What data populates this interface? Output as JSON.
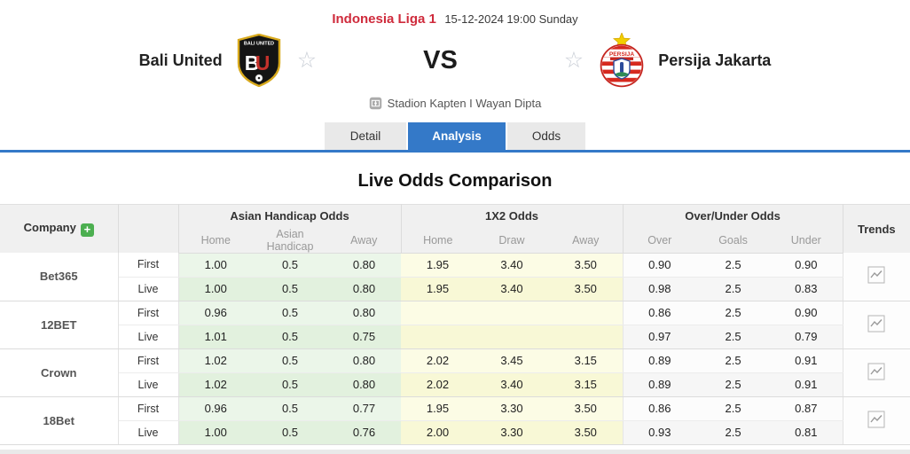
{
  "match_header": {
    "league": "Indonesia Liga 1",
    "datetime": "15-12-2024 19:00 Sunday",
    "home_team": "Bali United",
    "away_team": "Persija Jakarta",
    "vs_label": "VS",
    "venue": "Stadion Kapten I Wayan Dipta"
  },
  "tabs": [
    {
      "label": "Detail",
      "active": false
    },
    {
      "label": "Analysis",
      "active": true
    },
    {
      "label": "Odds",
      "active": false
    }
  ],
  "section_title": "Live Odds Comparison",
  "odds_table": {
    "company_header": "Company",
    "add_button_label": "+",
    "trends_header": "Trends",
    "row_labels": [
      "First",
      "Live"
    ],
    "groups": [
      {
        "label": "Asian Handicap Odds",
        "columns": [
          "Home",
          "Asian Handicap",
          "Away"
        ]
      },
      {
        "label": "1X2 Odds",
        "columns": [
          "Home",
          "Draw",
          "Away"
        ]
      },
      {
        "label": "Over/Under Odds",
        "columns": [
          "Over",
          "Goals",
          "Under"
        ]
      }
    ],
    "companies": [
      {
        "name": "Bet365",
        "first": {
          "ah": [
            "1.00",
            "0.5",
            "0.80"
          ],
          "x12": [
            "1.95",
            "3.40",
            "3.50"
          ],
          "ou": [
            "0.90",
            "2.5",
            "0.90"
          ]
        },
        "live": {
          "ah": [
            "1.00",
            "0.5",
            "0.80"
          ],
          "x12": [
            "1.95",
            "3.40",
            "3.50"
          ],
          "ou": [
            "0.98",
            "2.5",
            "0.83"
          ]
        }
      },
      {
        "name": "12BET",
        "first": {
          "ah": [
            "0.96",
            "0.5",
            "0.80"
          ],
          "x12": [
            "",
            "",
            ""
          ],
          "ou": [
            "0.86",
            "2.5",
            "0.90"
          ]
        },
        "live": {
          "ah": [
            "1.01",
            "0.5",
            "0.75"
          ],
          "x12": [
            "",
            "",
            ""
          ],
          "ou": [
            "0.97",
            "2.5",
            "0.79"
          ]
        }
      },
      {
        "name": "Crown",
        "first": {
          "ah": [
            "1.02",
            "0.5",
            "0.80"
          ],
          "x12": [
            "2.02",
            "3.45",
            "3.15"
          ],
          "ou": [
            "0.89",
            "2.5",
            "0.91"
          ]
        },
        "live": {
          "ah": [
            "1.02",
            "0.5",
            "0.80"
          ],
          "x12": [
            "2.02",
            "3.40",
            "3.15"
          ],
          "ou": [
            "0.89",
            "2.5",
            "0.91"
          ]
        }
      },
      {
        "name": "18Bet",
        "first": {
          "ah": [
            "0.96",
            "0.5",
            "0.77"
          ],
          "x12": [
            "1.95",
            "3.30",
            "3.50"
          ],
          "ou": [
            "0.86",
            "2.5",
            "0.87"
          ]
        },
        "live": {
          "ah": [
            "1.00",
            "0.5",
            "0.76"
          ],
          "x12": [
            "2.00",
            "3.30",
            "3.50"
          ],
          "ou": [
            "0.93",
            "2.5",
            "0.81"
          ]
        }
      }
    ]
  },
  "icons": {
    "favorite": "star-outline",
    "venue": "stadium-icon",
    "trends": "line-chart-icon"
  },
  "colors": {
    "league_red": "#cf2b3c",
    "tab_active_blue": "#3479c8",
    "add_button_green": "#4caf50",
    "asian_handicap_green": "#ebf6e9",
    "x12_yellow": "#fcfce5",
    "header_gray": "#f0f0f0"
  }
}
